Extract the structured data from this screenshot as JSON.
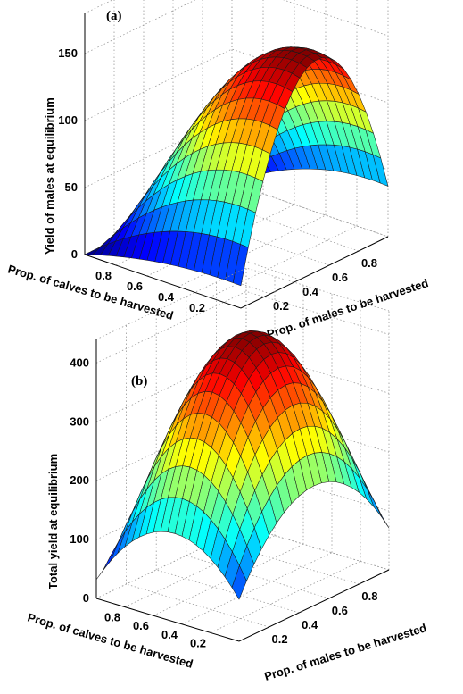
{
  "chart_data": [
    {
      "panel_label": "(a)",
      "type": "surface",
      "zlabel": "Yield of males at equilibrium",
      "xlabel": "Prop. of calves to be harvested",
      "ylabel": "Prop. of males to be harvested",
      "x_ticks": [
        "0.8",
        "0.6",
        "0.4",
        "0.2"
      ],
      "y_ticks": [
        "0.2",
        "0.4",
        "0.6",
        "0.8"
      ],
      "z_ticks": [
        "0",
        "50",
        "100",
        "150"
      ],
      "zlim": [
        0,
        180
      ],
      "grid": true,
      "colormap": "jet",
      "surface_model": "male_yield",
      "peak_value": 160
    },
    {
      "panel_label": "(b)",
      "type": "surface",
      "zlabel": "Total yield at equilibrium",
      "xlabel": "Prop. of calves to be harvested",
      "ylabel": "Prop. of males to be harvested",
      "x_ticks": [
        "0.8",
        "0.6",
        "0.4",
        "0.2"
      ],
      "y_ticks": [
        "0.2",
        "0.4",
        "0.6",
        "0.8"
      ],
      "z_ticks": [
        "0",
        "100",
        "200",
        "300",
        "400"
      ],
      "zlim": [
        0,
        440
      ],
      "grid": true,
      "colormap": "jet",
      "surface_model": "total_yield",
      "peak_value": 430
    }
  ]
}
